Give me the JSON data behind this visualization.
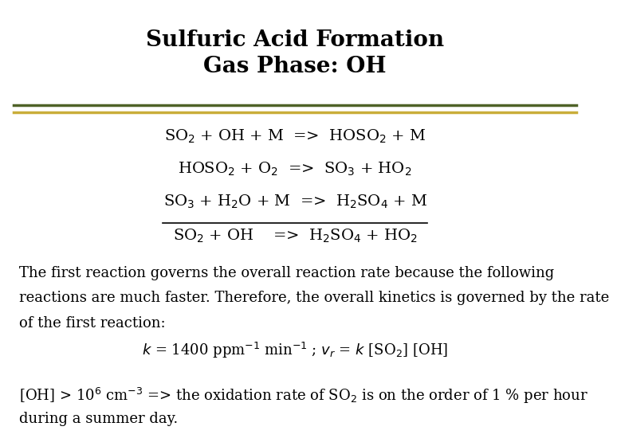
{
  "title_line1": "Sulfuric Acid Formation",
  "title_line2": "Gas Phase: OH",
  "title_fontsize": 20,
  "bg_color": "#ffffff",
  "separator_color1": "#4f6228",
  "separator_color2": "#c9ad3a",
  "body_fontsize": 13,
  "eq_fontsize": 14,
  "reaction1": "SO$_2$ + OH + M  =>  HOSO$_2$ + M",
  "reaction2": "HOSO$_2$ + O$_2$  =>  SO$_3$ + HO$_2$",
  "reaction3": "SO$_3$ + H$_2$O + M  =>  H$_2$SO$_4$ + M",
  "reaction4": "SO$_2$ + OH    =>  H$_2$SO$_4$ + HO$_2$",
  "paragraph1_line1": "The first reaction governs the overall reaction rate because the following",
  "paragraph1_line2": "reactions are much faster. Therefore, the overall kinetics is governed by the rate",
  "paragraph1_line3": "of the first reaction:",
  "kinetics_eq": "$k$ = 1400 ppm$^{-1}$ min$^{-1}$ ; $v_r$ = $k$ [SO$_2$] [OH]",
  "paragraph2_line1": "[OH] > 10$^6$ cm$^{-3}$ => the oxidation rate of SO$_2$ is on the order of 1 % per hour",
  "paragraph2_line2": "during a summer day."
}
